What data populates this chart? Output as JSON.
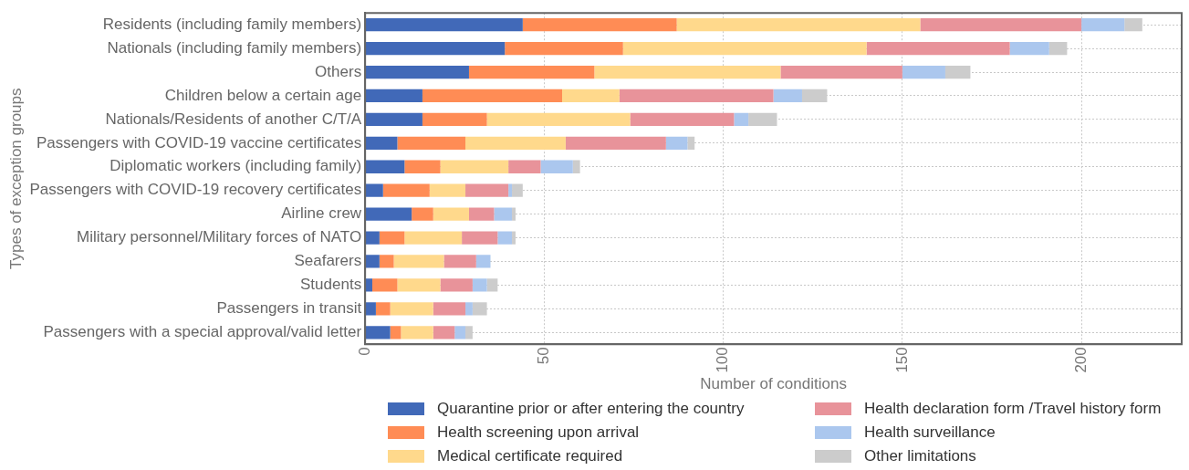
{
  "chart_data": {
    "type": "bar",
    "orientation": "horizontal",
    "stacked": true,
    "xlabel": "Number of conditions",
    "ylabel": "Types of exception groups",
    "categories": [
      "Residents (including family members)",
      "Nationals (including family members)",
      "Others",
      "Children below a certain age",
      "Nationals/Residents of another C/T/A",
      "Passengers with COVID-19 vaccine certificates",
      "Diplomatic workers (including family)",
      "Passengers with COVID-19 recovery certificates",
      "Airline crew",
      "Military personnel/Military forces of NATO",
      "Seafarers",
      "Students",
      "Passengers in transit",
      "Passengers with a special approval/valid letter"
    ],
    "series": [
      {
        "name": "Quarantine prior or after entering the country",
        "color": "#4169b8",
        "values": [
          44,
          39,
          29,
          16,
          16,
          9,
          11,
          5,
          13,
          4,
          4,
          2,
          3,
          7
        ]
      },
      {
        "name": "Health screening upon arrival",
        "color": "#ff8c55",
        "values": [
          43,
          33,
          35,
          39,
          18,
          19,
          10,
          13,
          6,
          7,
          4,
          7,
          4,
          3
        ]
      },
      {
        "name": "Medical certificate required",
        "color": "#ffd98c",
        "values": [
          68,
          68,
          52,
          16,
          40,
          28,
          19,
          10,
          10,
          16,
          14,
          12,
          12,
          9
        ]
      },
      {
        "name": "Health declaration form /Travel history form",
        "color": "#e8939a",
        "values": [
          45,
          40,
          34,
          43,
          29,
          28,
          9,
          12,
          7,
          10,
          9,
          9,
          9,
          6
        ]
      },
      {
        "name": "Health surveillance",
        "color": "#abc7ee",
        "values": [
          12,
          11,
          12,
          8,
          4,
          6,
          9,
          1,
          5,
          4,
          4,
          4,
          2,
          3
        ]
      },
      {
        "name": "Other limitations",
        "color": "#cccccc",
        "values": [
          5,
          5,
          7,
          7,
          8,
          2,
          2,
          3,
          1,
          1,
          0,
          3,
          4,
          2
        ]
      }
    ],
    "xlim": [
      0,
      228
    ],
    "xticks": [
      0,
      50,
      100,
      150,
      200
    ],
    "grid": true,
    "legend": "bottom"
  }
}
